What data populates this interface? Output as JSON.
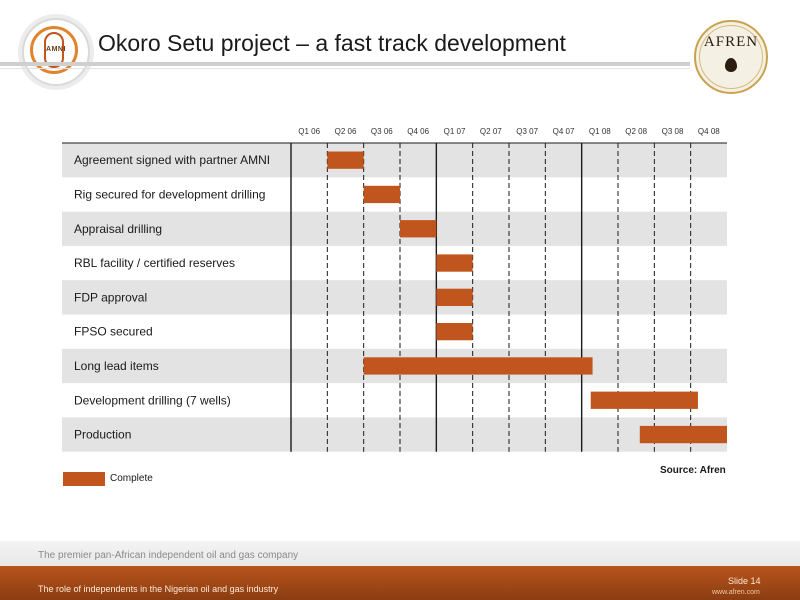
{
  "header": {
    "title": "Okoro Setu project – a fast track development",
    "left_logo_text": "AMNI",
    "right_logo_text": "AFREN"
  },
  "chart_data": {
    "type": "gantt",
    "quarters": [
      "Q1 06",
      "Q2 06",
      "Q3 06",
      "Q4 06",
      "Q1 07",
      "Q2 07",
      "Q3 07",
      "Q4 07",
      "Q1 08",
      "Q2 08",
      "Q3 08",
      "Q4 08"
    ],
    "tasks": [
      {
        "name": "Agreement signed with partner AMNI",
        "start": 1,
        "end": 2
      },
      {
        "name": "Rig secured for development drilling",
        "start": 2,
        "end": 3
      },
      {
        "name": "Appraisal drilling",
        "start": 3,
        "end": 4
      },
      {
        "name": "RBL facility / certified reserves",
        "start": 4,
        "end": 5
      },
      {
        "name": "FDP approval",
        "start": 4,
        "end": 5
      },
      {
        "name": "FPSO secured",
        "start": 4,
        "end": 5
      },
      {
        "name": "Long lead items",
        "start": 2,
        "end": 8.3
      },
      {
        "name": "Development drilling (7 wells)",
        "start": 8.25,
        "end": 11.2
      },
      {
        "name": "Production",
        "start": 9.6,
        "end": 12
      }
    ],
    "bar_color": "#c0561e",
    "stripe_color": "#e3e3e3"
  },
  "legend": {
    "label": "Complete",
    "color": "#c0561e"
  },
  "source": "Source: Afren",
  "footer": {
    "tagline": "The premier pan-African independent oil and gas company",
    "left_text": "The role of independents in the Nigerian oil and gas industry",
    "slide": "Slide 14",
    "url": "www.afren.com"
  }
}
